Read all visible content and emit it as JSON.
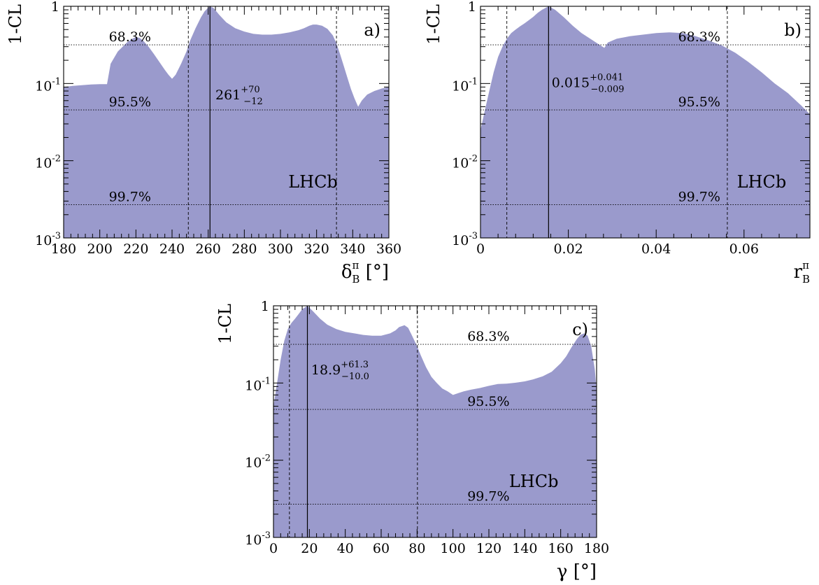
{
  "colors": {
    "fill": "#9a9acc"
  },
  "ylabel": "1-CL",
  "lhcb_label": "LHCb",
  "chart_data": [
    {
      "type": "area",
      "panel": "a)",
      "xlabel": "δ",
      "xlabel_sub": "B",
      "xlabel_sup": "π",
      "xlabel_unit": " [°]",
      "xlim": [
        180,
        360
      ],
      "ylim": [
        0.001,
        1
      ],
      "yscale": "log",
      "xticks": [
        "180",
        "200",
        "220",
        "240",
        "260",
        "280",
        "300",
        "320",
        "340",
        "360"
      ],
      "yticks": [
        {
          "v": 1,
          "base": "1",
          "exp": ""
        },
        {
          "v": 0.1,
          "base": "10",
          "exp": "-1"
        },
        {
          "v": 0.01,
          "base": "10",
          "exp": "-2"
        },
        {
          "v": 0.001,
          "base": "10",
          "exp": "-3"
        }
      ],
      "cl_lines": [
        {
          "v": 0.317,
          "label": "68.3%",
          "label_x": 205,
          "label_pos": "above"
        },
        {
          "v": 0.0455,
          "label": "95.5%",
          "label_x": 205,
          "label_pos": "above"
        },
        {
          "v": 0.0027,
          "label": "99.7%",
          "label_x": 205,
          "label_pos": "above"
        }
      ],
      "best_fit": 261,
      "interval": [
        249,
        331
      ],
      "best_fit_label": {
        "base": "261",
        "sup": "+70",
        "sub": "−12",
        "label_x": 264,
        "label_v": 0.062
      },
      "lhcb_pos": {
        "x": 318,
        "v": 0.0045
      },
      "x": [
        180,
        185,
        190,
        195,
        200,
        204,
        206,
        210,
        215,
        218,
        220,
        222,
        224,
        227,
        230,
        233,
        236,
        238,
        240,
        242,
        245,
        248,
        250,
        253,
        256,
        258,
        260,
        261,
        263,
        266,
        270,
        275,
        280,
        285,
        290,
        295,
        300,
        305,
        310,
        313,
        316,
        318,
        320,
        323,
        326,
        329,
        331,
        333,
        335,
        337,
        339,
        341,
        343,
        345,
        348,
        352,
        356,
        360
      ],
      "values": [
        0.09,
        0.093,
        0.095,
        0.097,
        0.098,
        0.098,
        0.18,
        0.26,
        0.34,
        0.38,
        0.4,
        0.39,
        0.36,
        0.3,
        0.24,
        0.19,
        0.15,
        0.13,
        0.115,
        0.13,
        0.18,
        0.26,
        0.36,
        0.52,
        0.72,
        0.86,
        0.96,
        1.0,
        0.95,
        0.78,
        0.62,
        0.52,
        0.47,
        0.44,
        0.43,
        0.43,
        0.44,
        0.46,
        0.49,
        0.52,
        0.56,
        0.58,
        0.58,
        0.56,
        0.51,
        0.42,
        0.33,
        0.24,
        0.17,
        0.12,
        0.085,
        0.064,
        0.05,
        0.06,
        0.072,
        0.08,
        0.086,
        0.09
      ]
    },
    {
      "type": "area",
      "panel": "b)",
      "xlabel": "r",
      "xlabel_sub": "B",
      "xlabel_sup": "π",
      "xlabel_unit": "",
      "xlim": [
        0,
        0.075
      ],
      "ylim": [
        0.001,
        1
      ],
      "yscale": "log",
      "xticks": [
        "0",
        "0.02",
        "0.04",
        "0.06"
      ],
      "xtick_values": [
        0,
        0.02,
        0.04,
        0.06
      ],
      "yticks": [
        {
          "v": 1,
          "base": "1",
          "exp": ""
        },
        {
          "v": 0.1,
          "base": "10",
          "exp": "-1"
        },
        {
          "v": 0.01,
          "base": "10",
          "exp": "-2"
        },
        {
          "v": 0.001,
          "base": "10",
          "exp": "-3"
        }
      ],
      "cl_lines": [
        {
          "v": 0.317,
          "label": "68.3%",
          "label_x": 0.045,
          "label_pos": "above"
        },
        {
          "v": 0.0455,
          "label": "95.5%",
          "label_x": 0.045,
          "label_pos": "above"
        },
        {
          "v": 0.0027,
          "label": "99.7%",
          "label_x": 0.045,
          "label_pos": "above"
        }
      ],
      "best_fit": 0.0155,
      "interval": [
        0.006,
        0.0562
      ],
      "best_fit_label": {
        "base": "0.015",
        "sup": "+0.041",
        "sub": "−0.009",
        "label_x": 0.0162,
        "label_v": 0.09
      },
      "lhcb_pos": {
        "x": 0.064,
        "v": 0.0045
      },
      "x": [
        0,
        0.001,
        0.002,
        0.003,
        0.004,
        0.005,
        0.006,
        0.007,
        0.008,
        0.009,
        0.01,
        0.011,
        0.012,
        0.013,
        0.014,
        0.0155,
        0.017,
        0.019,
        0.021,
        0.023,
        0.025,
        0.027,
        0.0282,
        0.029,
        0.031,
        0.034,
        0.037,
        0.04,
        0.043,
        0.046,
        0.049,
        0.052,
        0.055,
        0.058,
        0.061,
        0.064,
        0.067,
        0.07,
        0.073,
        0.075
      ],
      "values": [
        0.025,
        0.045,
        0.08,
        0.14,
        0.22,
        0.3,
        0.38,
        0.45,
        0.5,
        0.55,
        0.6,
        0.66,
        0.73,
        0.82,
        0.9,
        1.0,
        0.9,
        0.72,
        0.56,
        0.45,
        0.38,
        0.32,
        0.29,
        0.34,
        0.38,
        0.41,
        0.43,
        0.45,
        0.46,
        0.45,
        0.41,
        0.36,
        0.31,
        0.25,
        0.19,
        0.14,
        0.1,
        0.075,
        0.052,
        0.04
      ]
    },
    {
      "type": "area",
      "panel": "c)",
      "xlabel": "γ",
      "xlabel_sub": "",
      "xlabel_sup": "",
      "xlabel_unit": " [°]",
      "xlim": [
        0,
        180
      ],
      "ylim": [
        0.001,
        1
      ],
      "yscale": "log",
      "xticks": [
        "0",
        "20",
        "40",
        "60",
        "80",
        "100",
        "120",
        "140",
        "160",
        "180"
      ],
      "yticks": [
        {
          "v": 1,
          "base": "1",
          "exp": ""
        },
        {
          "v": 0.1,
          "base": "10",
          "exp": "-1"
        },
        {
          "v": 0.01,
          "base": "10",
          "exp": "-2"
        },
        {
          "v": 0.001,
          "base": "10",
          "exp": "-3"
        }
      ],
      "cl_lines": [
        {
          "v": 0.317,
          "label": "68.3%",
          "label_x": 108,
          "label_pos": "above"
        },
        {
          "v": 0.0455,
          "label": "95.5%",
          "label_x": 108,
          "label_pos": "above"
        },
        {
          "v": 0.0027,
          "label": "99.7%",
          "label_x": 108,
          "label_pos": "above"
        }
      ],
      "best_fit": 18.9,
      "interval": [
        8.9,
        80.2
      ],
      "best_fit_label": {
        "base": "18.9",
        "sup": "+61.3",
        "sub": "−10.0",
        "label_x": 21,
        "label_v": 0.13
      },
      "lhcb_pos": {
        "x": 145,
        "v": 0.0045
      },
      "x": [
        0,
        2,
        4,
        6,
        8,
        10,
        12,
        14,
        16,
        18.9,
        22,
        26,
        30,
        35,
        40,
        45,
        50,
        55,
        60,
        65,
        68,
        70,
        73,
        75,
        77,
        80,
        82,
        85,
        88,
        91,
        94,
        97,
        100,
        103,
        106,
        110,
        115,
        120,
        125,
        130,
        135,
        140,
        145,
        150,
        155,
        160,
        163,
        166,
        169,
        171,
        173,
        175,
        177,
        179,
        180
      ],
      "values": [
        0.05,
        0.1,
        0.2,
        0.35,
        0.5,
        0.6,
        0.68,
        0.78,
        0.9,
        1.0,
        0.85,
        0.68,
        0.57,
        0.5,
        0.46,
        0.44,
        0.42,
        0.41,
        0.41,
        0.44,
        0.48,
        0.53,
        0.56,
        0.52,
        0.42,
        0.3,
        0.23,
        0.16,
        0.12,
        0.1,
        0.085,
        0.078,
        0.07,
        0.074,
        0.078,
        0.082,
        0.086,
        0.092,
        0.097,
        0.098,
        0.101,
        0.105,
        0.112,
        0.122,
        0.14,
        0.18,
        0.22,
        0.29,
        0.37,
        0.42,
        0.44,
        0.41,
        0.3,
        0.15,
        0.08
      ]
    }
  ]
}
